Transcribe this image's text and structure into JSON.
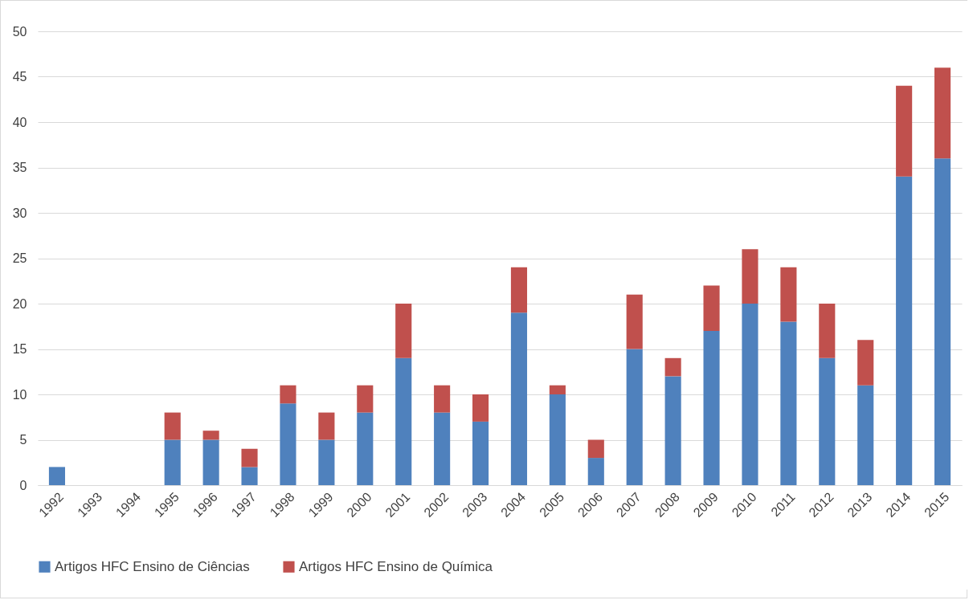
{
  "chart_data": {
    "type": "bar",
    "stacked": true,
    "categories": [
      "1992",
      "1993",
      "1994",
      "1995",
      "1996",
      "1997",
      "1998",
      "1999",
      "2000",
      "2001",
      "2002",
      "2003",
      "2004",
      "2005",
      "2006",
      "2007",
      "2008",
      "2009",
      "2010",
      "2011",
      "2012",
      "2013",
      "2014",
      "2015"
    ],
    "series": [
      {
        "name": "Artigos HFC Ensino de Ciências",
        "color": "#4f81bd",
        "values": [
          2,
          0,
          0,
          5,
          5,
          2,
          9,
          5,
          8,
          14,
          8,
          7,
          19,
          10,
          3,
          15,
          12,
          17,
          20,
          18,
          14,
          11,
          34,
          36
        ]
      },
      {
        "name": "Artigos HFC Ensino de Química",
        "color": "#c0504d",
        "values": [
          0,
          0,
          0,
          3,
          1,
          2,
          2,
          3,
          3,
          6,
          3,
          3,
          5,
          1,
          2,
          6,
          2,
          5,
          6,
          6,
          6,
          5,
          10,
          10
        ]
      }
    ],
    "ylim": [
      0,
      50
    ],
    "yticks": [
      0,
      5,
      10,
      15,
      20,
      25,
      30,
      35,
      40,
      45,
      50
    ],
    "grid": "y",
    "legend": "bottom"
  }
}
